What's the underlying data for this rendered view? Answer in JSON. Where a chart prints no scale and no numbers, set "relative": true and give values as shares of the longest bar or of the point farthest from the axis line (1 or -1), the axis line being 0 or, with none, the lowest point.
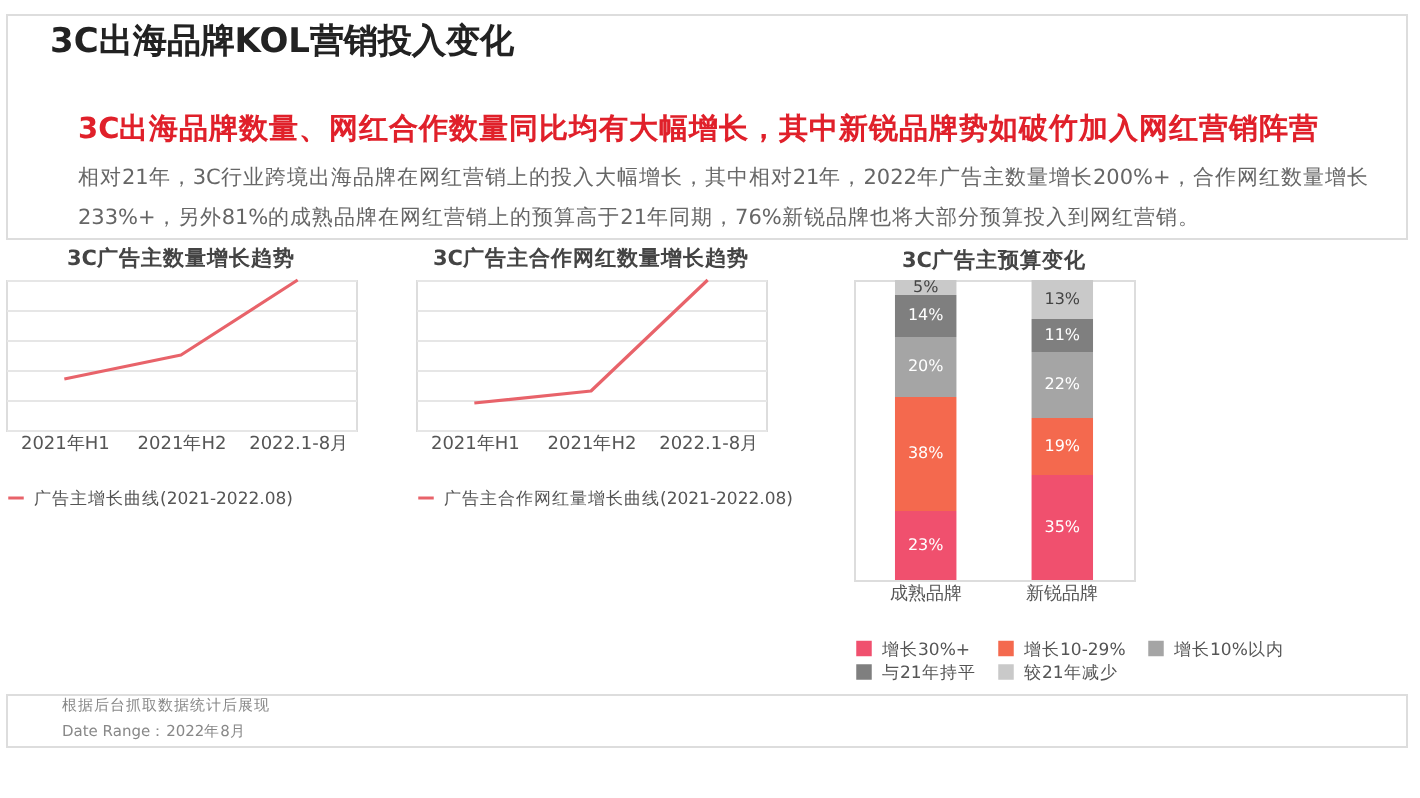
{
  "chart_data": [
    {
      "type": "other",
      "title": "3C出海品牌KOL营销投入变化",
      "subtitle": "3C出海品牌数量、网红合作数量同比均有大幅增长，其中新锐品牌势如破竹加入网红营销阵营",
      "annotations": [
        "相对21年，3C行业跨境出海品牌在网红营销上的投入大幅增长，其中相对21年，2022年广告主数量增长200%+，合作网红数量增长",
        "233%+，另外81%的成熟品牌在网红营销上的预算高于21年同期，76%新锐品牌也将大部分预算投入到网红营销。",
        "根据后台抓取数据统计后展现",
        "Date Range：2022年8月"
      ]
    },
    {
      "type": "line",
      "title": "3C广告主数量增长趋势",
      "categories": [
        "2021年H1",
        "2021年H2",
        "2022.1-8月"
      ],
      "relative": true,
      "grid": "y",
      "legend": "bottom",
      "marker": "none",
      "line_style": "solid",
      "series": [
        {
          "name": "广告主增长曲线(2021-2022.08)",
          "color": "#e8636a",
          "values": [
            0.34,
            0.5,
            1.0
          ]
        }
      ]
    },
    {
      "type": "line",
      "title": "3C广告主合作网红数量增长趋势",
      "categories": [
        "2021年H1",
        "2021年H2",
        "2022.1-8月"
      ],
      "relative": true,
      "grid": "y",
      "legend": "bottom",
      "marker": "none",
      "line_style": "solid",
      "series": [
        {
          "name": "广告主合作网红量增长曲线(2021-2022.08)",
          "color": "#e8636a",
          "values": [
            0.18,
            0.26,
            1.0
          ]
        }
      ]
    },
    {
      "type": "bar",
      "stacked": true,
      "title": "3C广告主预算变化",
      "categories": [
        "成熟品牌",
        "新锐品牌"
      ],
      "legend": "bottom",
      "series": [
        {
          "name": "增长30%+",
          "color": "#f0506e",
          "values": [
            23,
            35
          ],
          "value_labels": [
            "23%",
            "35%"
          ]
        },
        {
          "name": "增长10-29%",
          "color": "#f4694e",
          "values": [
            38,
            19
          ],
          "value_labels": [
            "38%",
            "19%"
          ]
        },
        {
          "name": "增长10%以内",
          "color": "#a5a5a5",
          "values": [
            20,
            22
          ],
          "value_labels": [
            "20%",
            "22%"
          ]
        },
        {
          "name": "与21年持平",
          "color": "#7f7f7f",
          "values": [
            14,
            11
          ],
          "value_labels": [
            "14%",
            "11%"
          ]
        },
        {
          "name": "较21年减少",
          "color": "#c9c9c9",
          "values": [
            5,
            13
          ],
          "value_labels": [
            "5%",
            "13%"
          ]
        }
      ]
    }
  ]
}
